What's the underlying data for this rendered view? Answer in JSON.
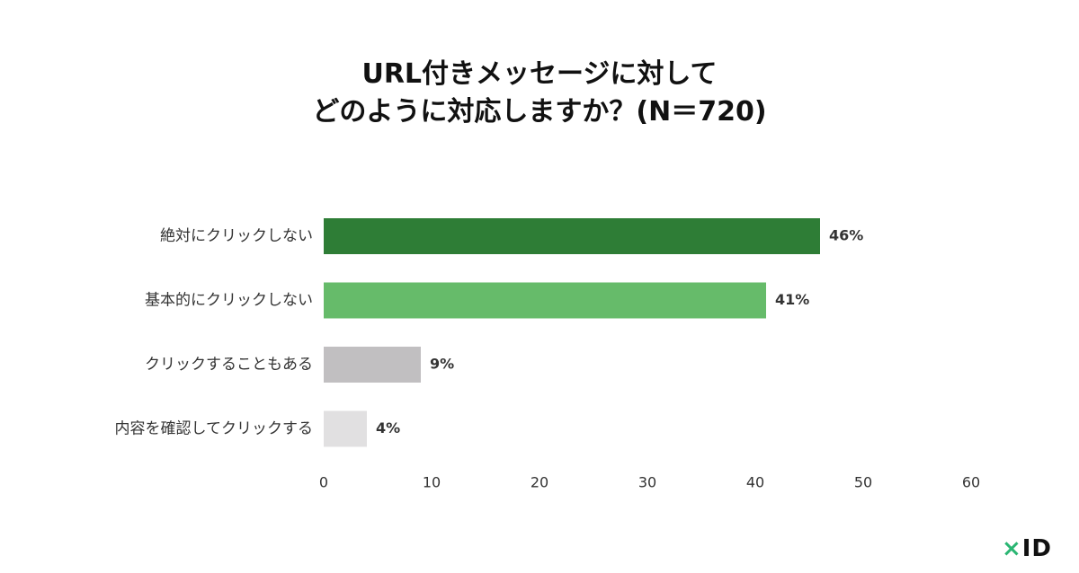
{
  "chart_data": {
    "type": "bar",
    "orientation": "horizontal",
    "title": [
      "URL付きメッセージに対して",
      "どのように対応しますか？(N＝720)"
    ],
    "categories": [
      "絶対にクリックしない",
      "基本的にクリックしない",
      "クリックすることもある",
      "内容を確認してクリックする"
    ],
    "values": [
      46,
      41,
      9,
      4
    ],
    "value_labels": [
      "46%",
      "41%",
      "9%",
      "4%"
    ],
    "colors": [
      "#2e7d36",
      "#66bb6a",
      "#c1bfc1",
      "#e1e0e1"
    ],
    "xlim": [
      0,
      60
    ],
    "xticks": [
      0,
      10,
      20,
      30,
      40,
      50,
      60
    ],
    "grid": false,
    "legend": "none"
  },
  "brand": {
    "mark": "×",
    "name": "ID",
    "accent_color": "#2bb673"
  }
}
